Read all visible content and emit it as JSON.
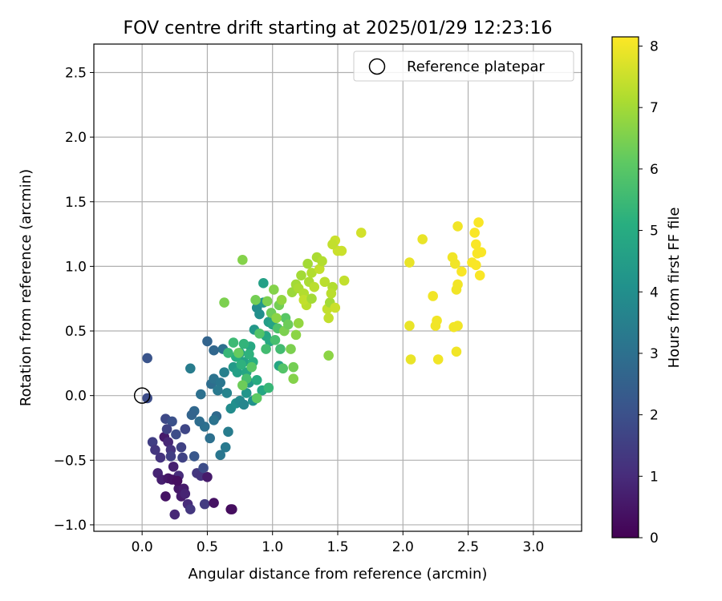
{
  "chart_data": {
    "type": "scatter",
    "title": "FOV centre drift starting at 2025/01/29 12:23:16",
    "xlabel": "Angular distance from reference (arcmin)",
    "ylabel": "Rotation from reference (arcmin)",
    "xlim": [
      -0.37,
      3.37
    ],
    "ylim": [
      -1.05,
      2.72
    ],
    "xticks": [
      0.0,
      0.5,
      1.0,
      1.5,
      2.0,
      2.5,
      3.0
    ],
    "xtick_labels": [
      "0.0",
      "0.5",
      "1.0",
      "1.5",
      "2.0",
      "2.5",
      "3.0"
    ],
    "yticks": [
      -1.0,
      -0.5,
      0.0,
      0.5,
      1.0,
      1.5,
      2.0,
      2.5
    ],
    "ytick_labels": [
      "−1.0",
      "−0.5",
      "0.0",
      "0.5",
      "1.0",
      "1.5",
      "2.0",
      "2.5"
    ],
    "grid": true,
    "legend": {
      "position": "top-right",
      "label": "Reference platepar",
      "marker": "open-circle"
    },
    "reference_point": {
      "x": 0.0,
      "y": 0.0
    },
    "colorbar": {
      "label": "Hours from first FF file",
      "range": [
        0,
        8.15
      ],
      "ticks": [
        0,
        1,
        2,
        3,
        4,
        5,
        6,
        7,
        8
      ],
      "tick_labels": [
        "0",
        "1",
        "2",
        "3",
        "4",
        "5",
        "6",
        "7",
        "8"
      ],
      "colormap": "viridis"
    },
    "points": [
      [
        0.04,
        -0.02,
        1.9
      ],
      [
        0.04,
        0.29,
        2.1
      ],
      [
        0.12,
        -0.6,
        0.8
      ],
      [
        0.15,
        -0.65,
        0.7
      ],
      [
        0.18,
        -0.78,
        0.4
      ],
      [
        0.17,
        -0.32,
        0.6
      ],
      [
        0.2,
        -0.36,
        0.9
      ],
      [
        0.22,
        -0.42,
        1.2
      ],
      [
        0.18,
        -0.18,
        1.8
      ],
      [
        0.25,
        -0.92,
        0.9
      ],
      [
        0.28,
        -0.72,
        0.5
      ],
      [
        0.3,
        -0.78,
        0.6
      ],
      [
        0.24,
        -0.55,
        0.7
      ],
      [
        0.28,
        -0.62,
        1.0
      ],
      [
        0.2,
        -0.64,
        0.5
      ],
      [
        0.32,
        -0.72,
        0.6
      ],
      [
        0.33,
        -0.76,
        0.8
      ],
      [
        0.35,
        -0.84,
        1.0
      ],
      [
        0.23,
        -0.65,
        0.4
      ],
      [
        0.27,
        -0.66,
        0.3
      ],
      [
        0.08,
        -0.36,
        1.5
      ],
      [
        0.1,
        -0.42,
        1.3
      ],
      [
        0.14,
        -0.48,
        1.2
      ],
      [
        0.22,
        -0.47,
        1.5
      ],
      [
        0.26,
        -0.3,
        1.9
      ],
      [
        0.3,
        -0.4,
        1.6
      ],
      [
        0.33,
        -0.26,
        1.7
      ],
      [
        0.23,
        -0.2,
        2.0
      ],
      [
        0.19,
        -0.26,
        1.6
      ],
      [
        0.37,
        -0.88,
        1.3
      ],
      [
        0.42,
        -0.6,
        1.3
      ],
      [
        0.45,
        -0.62,
        1.2
      ],
      [
        0.48,
        -0.84,
        1.4
      ],
      [
        0.5,
        -0.63,
        0.6
      ],
      [
        0.55,
        -0.83,
        0.4
      ],
      [
        0.68,
        -0.88,
        0.2
      ],
      [
        0.69,
        -0.88,
        0.3
      ],
      [
        0.31,
        -0.48,
        1.6
      ],
      [
        0.4,
        -0.47,
        2.2
      ],
      [
        0.47,
        -0.56,
        1.9
      ],
      [
        0.48,
        -0.24,
        3.0
      ],
      [
        0.52,
        -0.33,
        3.0
      ],
      [
        0.57,
        -0.16,
        2.8
      ],
      [
        0.6,
        -0.46,
        3.2
      ],
      [
        0.64,
        -0.4,
        3.3
      ],
      [
        0.66,
        -0.28,
        3.4
      ],
      [
        0.55,
        -0.19,
        3.1
      ],
      [
        0.44,
        -0.2,
        2.9
      ],
      [
        0.4,
        -0.12,
        2.7
      ],
      [
        0.38,
        -0.15,
        2.6
      ],
      [
        0.45,
        0.01,
        3.0
      ],
      [
        0.53,
        0.09,
        2.9
      ],
      [
        0.55,
        0.13,
        3.1
      ],
      [
        0.6,
        0.1,
        3.2
      ],
      [
        0.63,
        0.18,
        3.5
      ],
      [
        0.65,
        0.02,
        3.6
      ],
      [
        0.68,
        -0.1,
        3.9
      ],
      [
        0.72,
        -0.06,
        4.0
      ],
      [
        0.75,
        -0.04,
        3.8
      ],
      [
        0.78,
        -0.07,
        3.7
      ],
      [
        0.8,
        0.02,
        4.2
      ],
      [
        0.82,
        0.1,
        4.3
      ],
      [
        0.85,
        -0.04,
        4.1
      ],
      [
        0.58,
        0.04,
        3.3
      ],
      [
        0.62,
        0.36,
        3.0
      ],
      [
        0.55,
        0.35,
        2.7
      ],
      [
        0.5,
        0.42,
        2.6
      ],
      [
        0.37,
        0.21,
        3.4
      ],
      [
        0.7,
        0.22,
        4.4
      ],
      [
        0.73,
        0.18,
        4.6
      ],
      [
        0.75,
        0.33,
        4.5
      ],
      [
        0.78,
        0.26,
        4.7
      ],
      [
        0.8,
        0.18,
        4.8
      ],
      [
        0.83,
        0.38,
        4.9
      ],
      [
        0.86,
        0.51,
        4.3
      ],
      [
        0.88,
        0.68,
        3.9
      ],
      [
        0.9,
        0.63,
        4.0
      ],
      [
        0.93,
        0.72,
        4.3
      ],
      [
        0.95,
        0.46,
        4.8
      ],
      [
        0.97,
        0.57,
        4.5
      ],
      [
        0.98,
        0.42,
        4.9
      ],
      [
        1.0,
        0.55,
        4.7
      ],
      [
        1.05,
        0.23,
        4.8
      ],
      [
        0.92,
        0.04,
        4.8
      ],
      [
        0.88,
        0.12,
        5.0
      ],
      [
        0.85,
        0.26,
        5.1
      ],
      [
        0.82,
        0.32,
        5.2
      ],
      [
        0.78,
        0.4,
        5.3
      ],
      [
        0.76,
        0.24,
        5.2
      ],
      [
        0.72,
        0.3,
        5.1
      ],
      [
        0.7,
        0.41,
        5.5
      ],
      [
        0.66,
        0.33,
        5.4
      ],
      [
        0.93,
        0.87,
        4.6
      ],
      [
        0.95,
        0.36,
        5.6
      ],
      [
        0.97,
        0.06,
        5.4
      ],
      [
        1.02,
        0.43,
        5.7
      ],
      [
        1.04,
        0.52,
        5.8
      ],
      [
        1.06,
        0.36,
        5.6
      ],
      [
        1.08,
        0.21,
        5.9
      ],
      [
        1.1,
        0.6,
        6.0
      ],
      [
        0.9,
        0.48,
        5.9
      ],
      [
        0.88,
        -0.02,
        6.1
      ],
      [
        0.84,
        0.22,
        6.0
      ],
      [
        0.8,
        0.13,
        5.7
      ],
      [
        0.77,
        0.08,
        6.3
      ],
      [
        0.74,
        0.33,
        6.2
      ],
      [
        0.87,
        0.74,
        6.4
      ],
      [
        0.63,
        0.72,
        6.5
      ],
      [
        0.77,
        1.05,
        6.6
      ],
      [
        0.96,
        0.73,
        6.5
      ],
      [
        0.99,
        0.64,
        6.3
      ],
      [
        1.01,
        0.82,
        6.6
      ],
      [
        1.03,
        0.6,
        6.7
      ],
      [
        1.05,
        0.7,
        6.4
      ],
      [
        1.07,
        0.74,
        6.8
      ],
      [
        1.09,
        0.5,
        6.5
      ],
      [
        1.12,
        0.55,
        6.3
      ],
      [
        1.14,
        0.36,
        6.5
      ],
      [
        1.16,
        0.13,
        6.6
      ],
      [
        1.16,
        0.22,
        6.4
      ],
      [
        1.18,
        0.47,
        6.7
      ],
      [
        1.2,
        0.56,
        6.8
      ],
      [
        1.15,
        0.8,
        6.9
      ],
      [
        1.18,
        0.86,
        7.0
      ],
      [
        1.2,
        0.83,
        7.1
      ],
      [
        1.22,
        0.93,
        7.0
      ],
      [
        1.24,
        0.79,
        7.2
      ],
      [
        1.26,
        0.7,
        7.3
      ],
      [
        1.28,
        0.88,
        7.1
      ],
      [
        1.3,
        0.95,
        7.2
      ],
      [
        1.32,
        0.84,
        7.3
      ],
      [
        1.34,
        1.07,
        7.1
      ],
      [
        1.36,
        0.98,
        7.4
      ],
      [
        1.38,
        1.04,
        7.2
      ],
      [
        1.4,
        0.88,
        7.3
      ],
      [
        1.42,
        0.67,
        7.4
      ],
      [
        1.44,
        0.72,
        7.0
      ],
      [
        1.46,
        0.84,
        7.2
      ],
      [
        1.27,
        1.02,
        7.0
      ],
      [
        1.24,
        0.74,
        7.4
      ],
      [
        1.43,
        0.6,
        7.4
      ],
      [
        1.43,
        0.31,
        6.7
      ],
      [
        1.48,
        0.68,
        7.5
      ],
      [
        1.45,
        0.79,
        7.3
      ],
      [
        1.5,
        1.12,
        7.5
      ],
      [
        1.48,
        1.2,
        7.5
      ],
      [
        1.46,
        1.17,
        7.4
      ],
      [
        1.53,
        1.12,
        7.5
      ],
      [
        1.55,
        0.89,
        7.4
      ],
      [
        1.68,
        1.26,
        7.6
      ],
      [
        1.3,
        0.75,
        7.0
      ],
      [
        2.05,
        1.03,
        7.9
      ],
      [
        2.05,
        0.54,
        7.9
      ],
      [
        2.06,
        0.28,
        7.9
      ],
      [
        2.15,
        1.21,
        7.9
      ],
      [
        2.23,
        0.77,
        8.0
      ],
      [
        2.25,
        0.54,
        8.0
      ],
      [
        2.26,
        0.58,
        8.0
      ],
      [
        2.27,
        0.28,
        8.0
      ],
      [
        2.38,
        1.07,
        8.0
      ],
      [
        2.4,
        1.02,
        8.0
      ],
      [
        2.42,
        1.31,
        8.0
      ],
      [
        2.42,
        0.86,
        8.0
      ],
      [
        2.41,
        0.82,
        8.0
      ],
      [
        2.39,
        0.53,
        8.0
      ],
      [
        2.42,
        0.54,
        8.0
      ],
      [
        2.41,
        0.34,
        8.0
      ],
      [
        2.45,
        0.96,
        8.1
      ],
      [
        2.53,
        1.03,
        8.1
      ],
      [
        2.55,
        1.26,
        8.1
      ],
      [
        2.56,
        1.17,
        8.1
      ],
      [
        2.57,
        1.1,
        8.1
      ],
      [
        2.58,
        1.34,
        8.1
      ],
      [
        2.59,
        0.93,
        8.1
      ],
      [
        2.56,
        1.01,
        8.1
      ],
      [
        2.6,
        1.11,
        8.1
      ]
    ]
  }
}
